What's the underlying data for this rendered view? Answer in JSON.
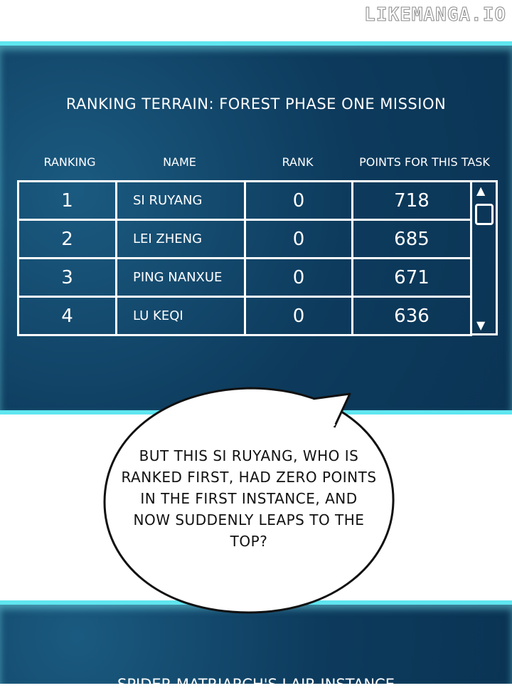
{
  "watermark": "LIKEMANGA.IO",
  "panel1": {
    "title": "RANKING TERRAIN: FOREST PHASE ONE MISSION",
    "headers": [
      "RANKING",
      "NAME",
      "RANK",
      "POINTS FOR THIS TASK"
    ],
    "rows": [
      [
        "1",
        "SI RUYANG",
        "0",
        "718"
      ],
      [
        "2",
        "LEI ZHENG",
        "0",
        "685"
      ],
      [
        "3",
        "PING NANXUE",
        "0",
        "671"
      ],
      [
        "4",
        "LU KEQI",
        "0",
        "636"
      ]
    ],
    "scroll_up_icon": "triangle-up",
    "scroll_down_icon": "triangle-down"
  },
  "bubble": {
    "text": "BUT THIS SI RUYANG, WHO IS RANKED FIRST, HAD ZERO POINTS IN THE FIRST INSTANCE, AND NOW SUDDENLY LEAPS TO THE TOP?"
  },
  "panel2": {
    "title": "SPIDER MATRIARCH'S LAIR INSTANCE"
  },
  "colors": {
    "panel": "#0d3b5d",
    "accent": "#5fe6ef"
  }
}
